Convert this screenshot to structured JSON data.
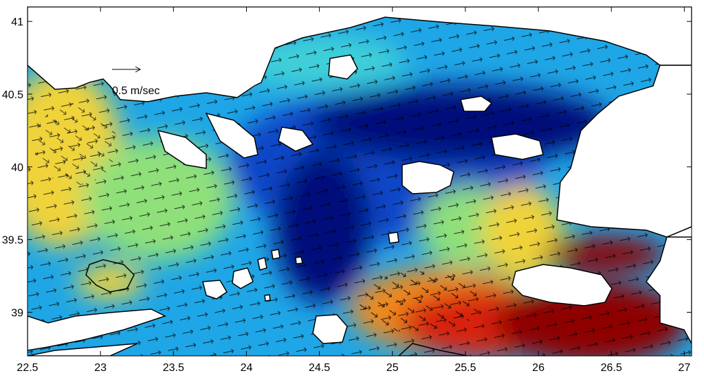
{
  "map": {
    "xaxis": {
      "range": [
        22.5,
        27.05
      ],
      "ticks": [
        "22.5",
        "23",
        "23.5",
        "24",
        "24.5",
        "25",
        "25.5",
        "26",
        "26.5",
        "27"
      ]
    },
    "yaxis": {
      "range": [
        38.7,
        41.1
      ],
      "ticks": [
        "39",
        "39.5",
        "40",
        "40.5",
        "41"
      ]
    },
    "legend": {
      "scale_label": "0.5 m/sec"
    },
    "colors": {
      "deep_blue": "#00107a",
      "blue": "#0a46c8",
      "light_blue": "#1fa6e6",
      "cyan": "#3fd0d8",
      "green": "#8fe07a",
      "yellow": "#f0d33a",
      "orange": "#f08a1e",
      "red": "#d8220e",
      "dark_red": "#8e0000"
    }
  }
}
